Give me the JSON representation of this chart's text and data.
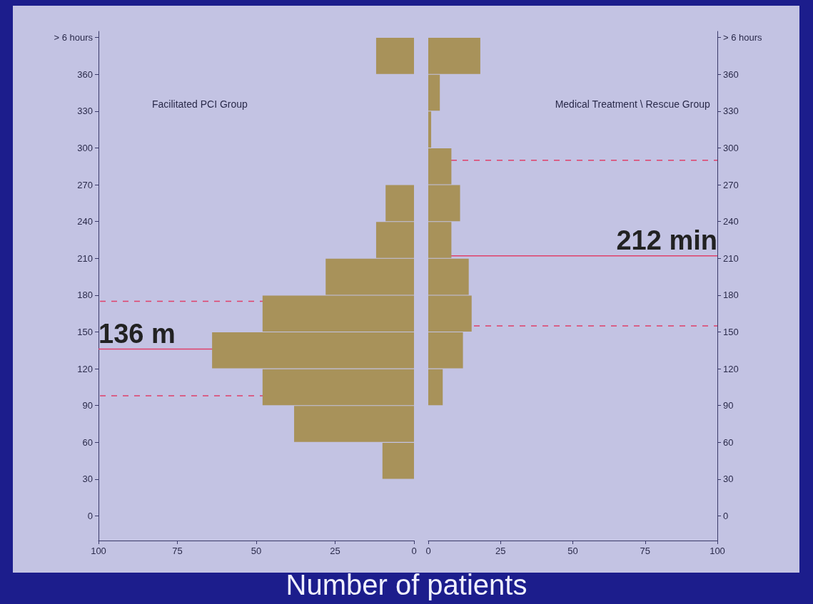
{
  "chart_data": [
    {
      "type": "histogram",
      "orientation": "horizontal",
      "title": "Facilitated PCI Group",
      "xlabel": "Number of patients",
      "color": "#a8925a",
      "bins": [
        30,
        60,
        90,
        120,
        150,
        180,
        210,
        240,
        270,
        300,
        330,
        360,
        390
      ],
      "values": [
        10,
        38,
        48,
        64,
        48,
        28,
        12,
        9,
        0,
        0,
        0,
        12
      ],
      "xlim": [
        100,
        0
      ],
      "xticks": [
        100,
        75,
        50,
        25,
        0
      ],
      "ylim": [
        -20,
        395
      ],
      "yticks": [
        0,
        30,
        60,
        90,
        120,
        150,
        180,
        210,
        240,
        270,
        300,
        330,
        360,
        {
          "value": 390,
          "label": "> 6 hours"
        }
      ],
      "ref_lines": [
        {
          "axis": "y",
          "value": 136,
          "label": "136 m",
          "color": "#e0406a",
          "line_style": "solid"
        },
        {
          "axis": "y",
          "value": 98,
          "label": null,
          "color": "#e0406a",
          "line_style": "dashed"
        },
        {
          "axis": "y",
          "value": 175,
          "label": null,
          "color": "#e0406a",
          "line_style": "dashed"
        }
      ]
    },
    {
      "type": "histogram",
      "orientation": "horizontal",
      "title": "Medical Treatment \\ Rescue Group",
      "color": "#a8925a",
      "bins": [
        30,
        60,
        90,
        120,
        150,
        180,
        210,
        240,
        270,
        300,
        330,
        360,
        390
      ],
      "values": [
        0,
        0,
        5,
        12,
        15,
        14,
        8,
        11,
        8,
        1,
        4,
        18
      ],
      "xlim": [
        0,
        100
      ],
      "xticks": [
        0,
        25,
        50,
        75,
        100
      ],
      "ylim": [
        -20,
        395
      ],
      "yticks": [
        0,
        30,
        60,
        90,
        120,
        150,
        180,
        210,
        240,
        270,
        300,
        330,
        360,
        {
          "value": 390,
          "label": "> 6 hours"
        }
      ],
      "ref_lines": [
        {
          "axis": "y",
          "value": 212,
          "label": "212 min",
          "color": "#e0406a",
          "line_style": "solid"
        },
        {
          "axis": "y",
          "value": 155,
          "label": null,
          "color": "#e0406a",
          "line_style": "dashed"
        },
        {
          "axis": "y",
          "value": 290,
          "label": null,
          "color": "#e0406a",
          "line_style": "dashed"
        }
      ]
    }
  ]
}
